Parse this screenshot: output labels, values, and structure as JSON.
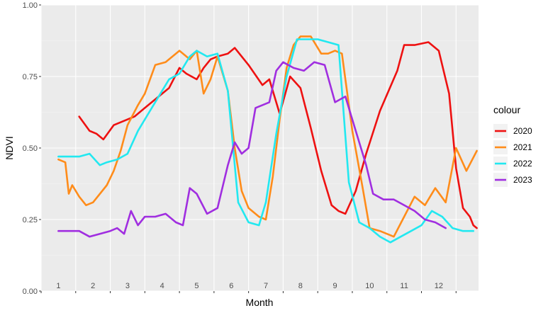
{
  "chart_data": {
    "type": "line",
    "xlabel": "Month",
    "ylabel": "NDVI",
    "ylim": [
      0,
      1
    ],
    "y_ticks": [
      "0.00",
      "0.25",
      "0.50",
      "0.75",
      "1.00"
    ],
    "y_tick_values": [
      0,
      0.25,
      0.5,
      0.75,
      1
    ],
    "months": [
      "1",
      "2",
      "3",
      "4",
      "5",
      "6",
      "7",
      "8",
      "9",
      "10",
      "11",
      "12"
    ],
    "grid": true,
    "legend": {
      "title": "colour",
      "position": "right"
    },
    "series": [
      {
        "name": "2020",
        "color": "#ee1111",
        "x": [
          1.6,
          1.9,
          2.1,
          2.3,
          2.6,
          3.2,
          3.5,
          4.2,
          4.5,
          4.7,
          5.0,
          5.2,
          5.4,
          5.6,
          5.9,
          6.1,
          6.5,
          6.9,
          7.1,
          7.4,
          7.7,
          8.0,
          8.3,
          8.6,
          8.9,
          9.1,
          9.3,
          9.6,
          9.9,
          10.3,
          10.8,
          11.0,
          11.3,
          11.7,
          12.0,
          12.3,
          12.5,
          12.7,
          12.9,
          13.0,
          13.1
        ],
        "y": [
          0.61,
          0.56,
          0.55,
          0.53,
          0.58,
          0.61,
          0.64,
          0.71,
          0.78,
          0.76,
          0.74,
          0.78,
          0.81,
          0.82,
          0.83,
          0.85,
          0.79,
          0.72,
          0.74,
          0.62,
          0.75,
          0.71,
          0.57,
          0.42,
          0.3,
          0.28,
          0.27,
          0.35,
          0.48,
          0.63,
          0.77,
          0.86,
          0.86,
          0.87,
          0.84,
          0.69,
          0.43,
          0.29,
          0.26,
          0.23,
          0.22
        ]
      },
      {
        "name": "2021",
        "color": "#ff8c1a",
        "x": [
          1.0,
          1.2,
          1.3,
          1.4,
          1.6,
          1.8,
          2.0,
          2.4,
          2.6,
          2.8,
          3.0,
          3.3,
          3.5,
          3.8,
          4.1,
          4.5,
          4.8,
          5.0,
          5.2,
          5.4,
          5.6,
          5.9,
          6.1,
          6.3,
          6.5,
          6.8,
          7.0,
          7.2,
          7.4,
          7.6,
          7.8,
          8.0,
          8.3,
          8.6,
          8.8,
          9.0,
          9.2,
          9.5,
          9.8,
          10.0,
          10.3,
          10.7,
          11.0,
          11.3,
          11.6,
          11.9,
          12.2,
          12.5,
          12.8,
          13.1
        ],
        "y": [
          0.46,
          0.45,
          0.34,
          0.37,
          0.33,
          0.3,
          0.31,
          0.37,
          0.42,
          0.49,
          0.58,
          0.65,
          0.69,
          0.79,
          0.8,
          0.84,
          0.81,
          0.84,
          0.69,
          0.74,
          0.82,
          0.7,
          0.5,
          0.35,
          0.29,
          0.26,
          0.25,
          0.4,
          0.6,
          0.78,
          0.86,
          0.89,
          0.89,
          0.83,
          0.83,
          0.84,
          0.83,
          0.56,
          0.36,
          0.22,
          0.21,
          0.19,
          0.26,
          0.33,
          0.3,
          0.36,
          0.31,
          0.5,
          0.42,
          0.49
        ]
      },
      {
        "name": "2022",
        "color": "#22e8f0",
        "x": [
          1.0,
          1.3,
          1.6,
          1.9,
          2.2,
          2.4,
          2.7,
          3.0,
          3.3,
          3.6,
          3.9,
          4.2,
          4.5,
          4.8,
          5.0,
          5.3,
          5.6,
          5.9,
          6.2,
          6.5,
          6.8,
          7.0,
          7.3,
          7.6,
          7.9,
          8.2,
          8.5,
          8.8,
          9.1,
          9.4,
          9.7,
          10.0,
          10.3,
          10.6,
          10.9,
          11.2,
          11.5,
          11.8,
          12.1,
          12.4,
          12.7,
          13.0
        ],
        "y": [
          0.47,
          0.47,
          0.47,
          0.48,
          0.44,
          0.45,
          0.46,
          0.48,
          0.56,
          0.62,
          0.68,
          0.74,
          0.76,
          0.82,
          0.84,
          0.82,
          0.83,
          0.7,
          0.31,
          0.24,
          0.23,
          0.31,
          0.55,
          0.75,
          0.88,
          0.88,
          0.88,
          0.87,
          0.86,
          0.38,
          0.24,
          0.22,
          0.19,
          0.17,
          0.19,
          0.21,
          0.23,
          0.28,
          0.26,
          0.22,
          0.21,
          0.21
        ]
      },
      {
        "name": "2023",
        "color": "#a02ee0",
        "x": [
          1.0,
          1.3,
          1.6,
          1.9,
          2.2,
          2.5,
          2.7,
          2.9,
          3.1,
          3.3,
          3.5,
          3.8,
          4.1,
          4.4,
          4.6,
          4.8,
          5.0,
          5.3,
          5.6,
          5.9,
          6.1,
          6.3,
          6.5,
          6.7,
          6.9,
          7.1,
          7.3,
          7.5,
          7.8,
          8.1,
          8.4,
          8.7,
          9.0,
          9.3,
          9.6,
          9.9,
          10.1,
          10.4,
          10.7,
          11.0,
          11.3,
          11.6,
          11.9,
          12.2
        ],
        "y": [
          0.21,
          0.21,
          0.21,
          0.19,
          0.2,
          0.21,
          0.22,
          0.2,
          0.28,
          0.23,
          0.26,
          0.26,
          0.27,
          0.24,
          0.23,
          0.36,
          0.34,
          0.27,
          0.29,
          0.44,
          0.52,
          0.48,
          0.5,
          0.64,
          0.65,
          0.66,
          0.77,
          0.8,
          0.78,
          0.77,
          0.8,
          0.79,
          0.66,
          0.68,
          0.56,
          0.44,
          0.34,
          0.32,
          0.32,
          0.3,
          0.28,
          0.25,
          0.24,
          0.22
        ]
      }
    ]
  }
}
